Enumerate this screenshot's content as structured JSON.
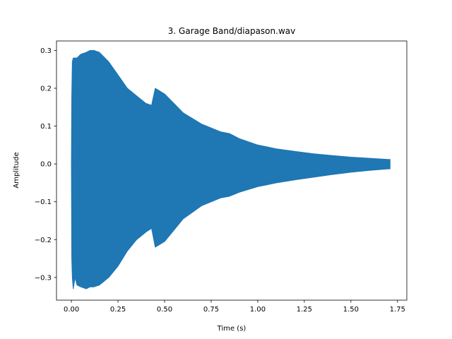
{
  "chart_data": {
    "type": "area",
    "title": "3. Garage Band/diapason.wav",
    "xlabel": "Time (s)",
    "ylabel": "Amplitude",
    "xlim": [
      -0.08,
      1.8
    ],
    "ylim": [
      -0.36,
      0.325
    ],
    "grid": false,
    "x_ticks": [
      {
        "value": 0.0,
        "label": "0.00"
      },
      {
        "value": 0.25,
        "label": "0.25"
      },
      {
        "value": 0.5,
        "label": "0.50"
      },
      {
        "value": 0.75,
        "label": "0.75"
      },
      {
        "value": 1.0,
        "label": "1.00"
      },
      {
        "value": 1.25,
        "label": "1.25"
      },
      {
        "value": 1.5,
        "label": "1.50"
      },
      {
        "value": 1.75,
        "label": "1.75"
      }
    ],
    "y_ticks": [
      {
        "value": 0.3,
        "label": "0.3"
      },
      {
        "value": 0.2,
        "label": "0.2"
      },
      {
        "value": 0.1,
        "label": "0.1"
      },
      {
        "value": 0.0,
        "label": "0.0"
      },
      {
        "value": -0.1,
        "label": "−0.1"
      },
      {
        "value": -0.2,
        "label": "−0.2"
      },
      {
        "value": -0.3,
        "label": "−0.3"
      }
    ],
    "series": [
      {
        "color": "#1f77b4",
        "x": [
          0.0,
          0.002,
          0.005,
          0.01,
          0.02,
          0.03,
          0.05,
          0.08,
          0.1,
          0.12,
          0.15,
          0.2,
          0.25,
          0.3,
          0.35,
          0.4,
          0.43,
          0.45,
          0.5,
          0.55,
          0.6,
          0.7,
          0.8,
          0.85,
          0.9,
          1.0,
          1.1,
          1.2,
          1.3,
          1.4,
          1.5,
          1.6,
          1.7,
          1.71
        ],
        "upper": [
          0.0,
          0.18,
          0.27,
          0.28,
          0.28,
          0.28,
          0.29,
          0.295,
          0.3,
          0.3,
          0.295,
          0.27,
          0.235,
          0.2,
          0.18,
          0.16,
          0.155,
          0.2,
          0.185,
          0.16,
          0.135,
          0.105,
          0.085,
          0.08,
          0.067,
          0.05,
          0.04,
          0.033,
          0.027,
          0.022,
          0.018,
          0.015,
          0.012,
          0.012
        ],
        "lower": [
          0.0,
          -0.25,
          -0.3,
          -0.33,
          -0.3,
          -0.32,
          -0.325,
          -0.33,
          -0.325,
          -0.325,
          -0.32,
          -0.3,
          -0.27,
          -0.23,
          -0.2,
          -0.18,
          -0.17,
          -0.22,
          -0.205,
          -0.175,
          -0.145,
          -0.11,
          -0.09,
          -0.085,
          -0.075,
          -0.06,
          -0.05,
          -0.042,
          -0.035,
          -0.028,
          -0.022,
          -0.017,
          -0.013,
          -0.013
        ]
      }
    ]
  }
}
